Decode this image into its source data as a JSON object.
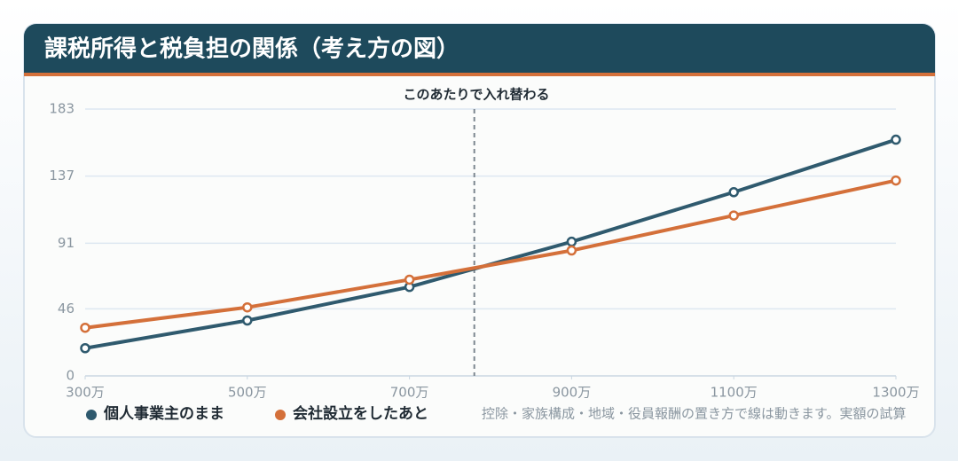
{
  "chart_data": {
    "type": "line",
    "title": "課税所得と税負担の関係（考え方の図）",
    "x": [
      300,
      500,
      700,
      900,
      1100,
      1300
    ],
    "xlim": [
      300,
      1300
    ],
    "xticks": [
      {
        "value": 300,
        "label": "300万"
      },
      {
        "value": 500,
        "label": "500万"
      },
      {
        "value": 700,
        "label": "700万"
      },
      {
        "value": 900,
        "label": "900万"
      },
      {
        "value": 1100,
        "label": "1100万"
      },
      {
        "value": 1300,
        "label": "1300万"
      }
    ],
    "ylim": [
      0,
      183
    ],
    "yticks": [
      0,
      46,
      91,
      137,
      183
    ],
    "grid": true,
    "series": [
      {
        "name": "個人事業主のまま",
        "color": "#2f5a6e",
        "values": [
          19,
          38,
          61,
          92,
          126,
          162
        ]
      },
      {
        "name": "会社設立をしたあと",
        "color": "#d4703a",
        "values": [
          33,
          47,
          66,
          86,
          110,
          134
        ]
      }
    ],
    "annotation": {
      "text": "このあたりで入れ替わる",
      "x": 780
    },
    "note": "控除・家族構成・地域・役員報酬の置き方で線は動きます。実額の試算"
  }
}
